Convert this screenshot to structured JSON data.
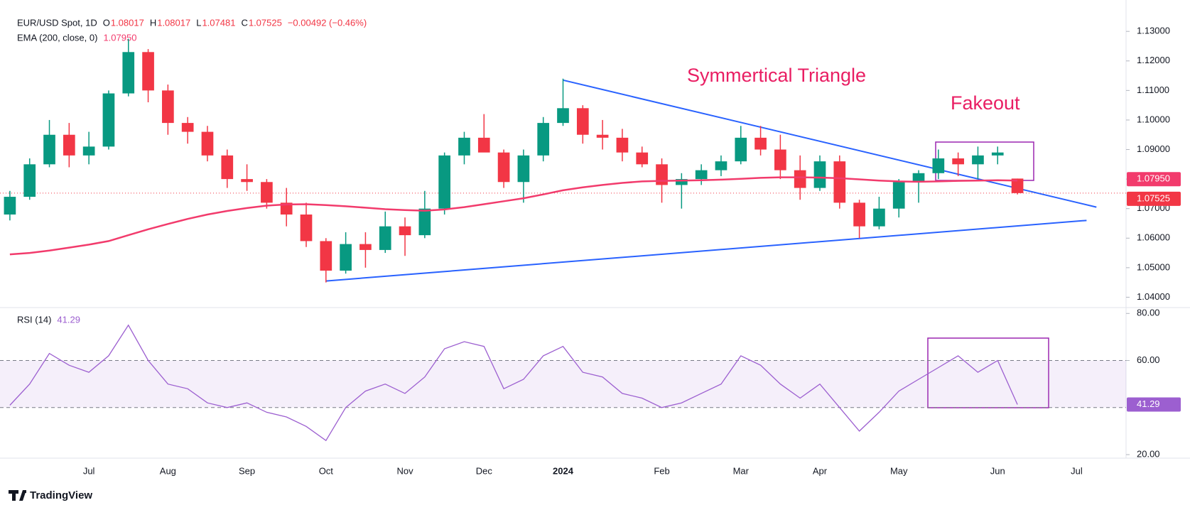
{
  "chart_data": {
    "type": "candlestick",
    "title": "EUR/USD Spot, 1D",
    "ohlc_legend": [
      {
        "key": "O",
        "text": "1.08017"
      },
      {
        "key": "H",
        "text": "1.08017"
      },
      {
        "key": "L",
        "text": "1.07481"
      },
      {
        "key": "C",
        "text": "1.07525"
      }
    ],
    "change": "−0.00492 (−0.46%)",
    "categories": [
      null,
      null,
      null,
      null,
      "Jul",
      null,
      null,
      null,
      "Aug",
      null,
      null,
      null,
      "Sep",
      null,
      null,
      null,
      "Oct",
      null,
      null,
      null,
      "Nov",
      null,
      null,
      null,
      "Dec",
      null,
      null,
      null,
      "2024",
      null,
      null,
      null,
      null,
      "Feb",
      null,
      null,
      null,
      "Mar",
      null,
      null,
      null,
      "Apr",
      null,
      null,
      null,
      "May",
      null,
      null,
      null,
      null,
      "Jun",
      null,
      null,
      null,
      "Jul",
      null,
      null
    ],
    "candles": {
      "up_color": "#089981",
      "down_color": "#f23645",
      "open": [
        1.068,
        1.074,
        1.085,
        1.095,
        1.088,
        1.091,
        1.109,
        1.123,
        1.11,
        1.099,
        1.096,
        1.088,
        1.08,
        1.079,
        1.072,
        1.068,
        1.059,
        1.049,
        1.058,
        1.056,
        1.064,
        1.061,
        1.07,
        1.088,
        1.094,
        1.089,
        1.079,
        1.088,
        1.099,
        1.104,
        1.095,
        1.094,
        1.089,
        1.085,
        1.078,
        1.08,
        1.083,
        1.086,
        1.094,
        1.09,
        1.083,
        1.077,
        1.086,
        1.072,
        1.064,
        1.07,
        1.079,
        1.082,
        1.087,
        1.085,
        1.088,
        1.08017,
        null,
        null,
        null,
        null,
        null
      ],
      "high": [
        1.076,
        1.087,
        1.1,
        1.099,
        1.096,
        1.11,
        1.1275,
        1.124,
        1.112,
        1.101,
        1.098,
        1.09,
        1.085,
        1.08,
        1.077,
        1.072,
        1.06,
        1.062,
        1.062,
        1.069,
        1.067,
        1.076,
        1.089,
        1.096,
        1.102,
        1.09,
        1.09,
        1.101,
        1.114,
        1.105,
        1.1,
        1.097,
        1.091,
        1.087,
        1.082,
        1.085,
        1.088,
        1.098,
        1.098,
        1.095,
        1.088,
        1.088,
        1.088,
        1.073,
        1.074,
        1.08,
        1.083,
        1.09,
        1.089,
        1.091,
        1.091,
        1.08017,
        null,
        null,
        null,
        null,
        null
      ],
      "low": [
        1.066,
        1.073,
        1.084,
        1.084,
        1.085,
        1.09,
        1.108,
        1.106,
        1.095,
        1.092,
        1.086,
        1.077,
        1.076,
        1.07,
        1.064,
        1.057,
        1.045,
        1.048,
        1.05,
        1.055,
        1.054,
        1.06,
        1.068,
        1.085,
        1.09,
        1.077,
        1.072,
        1.086,
        1.098,
        1.092,
        1.09,
        1.086,
        1.084,
        1.072,
        1.07,
        1.078,
        1.081,
        1.085,
        1.088,
        1.08,
        1.073,
        1.076,
        1.07,
        1.06,
        1.063,
        1.067,
        1.072,
        1.08,
        1.081,
        1.08,
        1.085,
        1.07481,
        null,
        null,
        null,
        null,
        null
      ],
      "close": [
        1.074,
        1.085,
        1.095,
        1.088,
        1.091,
        1.109,
        1.123,
        1.11,
        1.099,
        1.096,
        1.088,
        1.08,
        1.079,
        1.072,
        1.068,
        1.059,
        1.049,
        1.058,
        1.056,
        1.064,
        1.061,
        1.07,
        1.088,
        1.094,
        1.089,
        1.079,
        1.088,
        1.099,
        1.104,
        1.095,
        1.094,
        1.089,
        1.085,
        1.078,
        1.08,
        1.083,
        1.086,
        1.094,
        1.09,
        1.083,
        1.077,
        1.086,
        1.072,
        1.064,
        1.07,
        1.079,
        1.082,
        1.087,
        1.085,
        1.088,
        1.089,
        1.07525,
        null,
        null,
        null,
        null,
        null
      ]
    },
    "ema": {
      "name": "EMA (200, close, 0)",
      "value_label": "1.07950",
      "color": "#f23b6c",
      "values": [
        1.0545,
        1.055,
        1.0558,
        1.0568,
        1.0578,
        1.059,
        1.061,
        1.063,
        1.0648,
        1.0665,
        1.068,
        1.0692,
        1.0702,
        1.071,
        1.0714,
        1.0715,
        1.0712,
        1.0708,
        1.0703,
        1.0698,
        1.0695,
        1.0693,
        1.0697,
        1.0705,
        1.0715,
        1.0725,
        1.0735,
        1.0748,
        1.0762,
        1.0772,
        1.078,
        1.0787,
        1.0792,
        1.0794,
        1.0795,
        1.0796,
        1.0798,
        1.0801,
        1.0804,
        1.0806,
        1.0806,
        1.0805,
        1.0803,
        1.0799,
        1.0795,
        1.0792,
        1.0791,
        1.0792,
        1.0794,
        1.0795,
        1.0796,
        1.0795,
        null,
        null,
        null,
        null,
        null
      ]
    },
    "ema_last": {
      "value": 1.0795,
      "label": "1.07950"
    },
    "last_price": {
      "value": 1.07525,
      "label": "1.07525"
    },
    "ylim": [
      1.0365,
      1.1375
    ],
    "yticks": [
      {
        "value": 1.04,
        "label": "1.04000"
      },
      {
        "value": 1.05,
        "label": "1.05000"
      },
      {
        "value": 1.06,
        "label": "1.06000"
      },
      {
        "value": 1.07,
        "label": "1.07000"
      },
      {
        "value": 1.08,
        "label": "1.08000"
      },
      {
        "value": 1.09,
        "label": "1.09000"
      },
      {
        "value": 1.1,
        "label": "1.10000"
      },
      {
        "value": 1.11,
        "label": "1.11000"
      },
      {
        "value": 1.12,
        "label": "1.12000"
      },
      {
        "value": 1.13,
        "label": "1.13000"
      }
    ],
    "trendlines": [
      {
        "color": "#2962ff",
        "points": [
          [
            28,
            1.1135
          ],
          [
            55,
            1.0705
          ]
        ]
      },
      {
        "color": "#2962ff",
        "points": [
          [
            16,
            1.0455
          ],
          [
            54.5,
            1.066
          ]
        ]
      }
    ],
    "annotations": [
      {
        "text": "Symmertical Triangle"
      },
      {
        "text": "Fakeout"
      }
    ],
    "annotation_color": "#e91e63",
    "rsi": {
      "name": "RSI (14)",
      "value_label": "41.29",
      "color": "#9c5fd0",
      "values": [
        41,
        50,
        63,
        58,
        55,
        62,
        75,
        60,
        50,
        48,
        42,
        40,
        42,
        38,
        36,
        32,
        26,
        40,
        47,
        50,
        46,
        53,
        65,
        68,
        66,
        48,
        52,
        62,
        66,
        55,
        53,
        46,
        44,
        40,
        42,
        46,
        50,
        62,
        58,
        50,
        44,
        50,
        40,
        30,
        38,
        47,
        52,
        57,
        62,
        55,
        60,
        41.29,
        null,
        null,
        null,
        null,
        null
      ],
      "last": 41.29,
      "ylim": [
        18.5,
        82.5
      ],
      "yticks": [
        {
          "value": 20,
          "label": "20.00"
        },
        {
          "value": 60,
          "label": "60.00"
        },
        {
          "value": 80,
          "label": "80.00"
        }
      ],
      "band": [
        40,
        60
      ]
    }
  },
  "footer": "TradingView"
}
